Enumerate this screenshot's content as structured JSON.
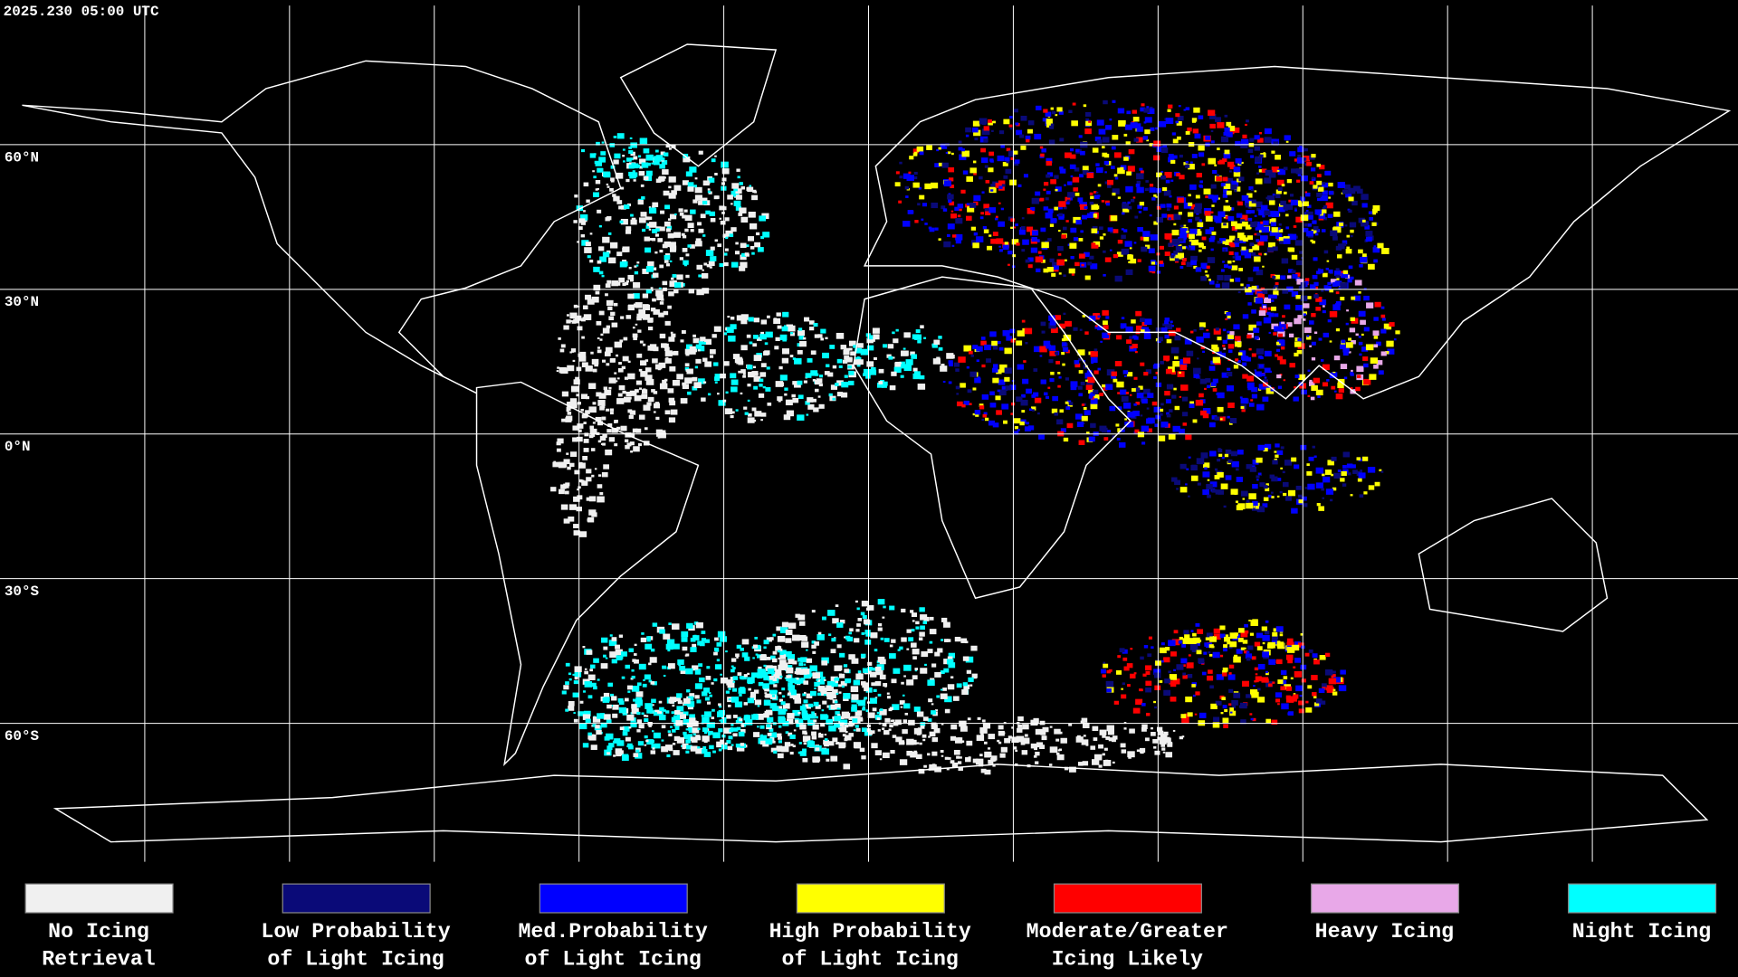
{
  "header": {
    "timestamp": "2025.230 05:00 UTC"
  },
  "map": {
    "latitude_labels": [
      "60°N",
      "30°N",
      "0°N",
      "30°S",
      "60°S"
    ]
  },
  "legend": {
    "items": [
      {
        "lines": [
          "No Icing",
          "Retrieval"
        ],
        "color": "#f0f0f0"
      },
      {
        "lines": [
          "Low Probability",
          "of Light Icing"
        ],
        "color": "#0a0a78"
      },
      {
        "lines": [
          "Med.Probability",
          "of Light Icing"
        ],
        "color": "#0000ff"
      },
      {
        "lines": [
          "High Probability",
          "of Light Icing"
        ],
        "color": "#ffff00"
      },
      {
        "lines": [
          "Moderate/Greater",
          "Icing Likely"
        ],
        "color": "#ff0000"
      },
      {
        "lines": [
          "Heavy Icing"
        ],
        "color": "#e8a8e8"
      },
      {
        "lines": [
          "Night Icing"
        ],
        "color": "#00ffff"
      }
    ]
  }
}
